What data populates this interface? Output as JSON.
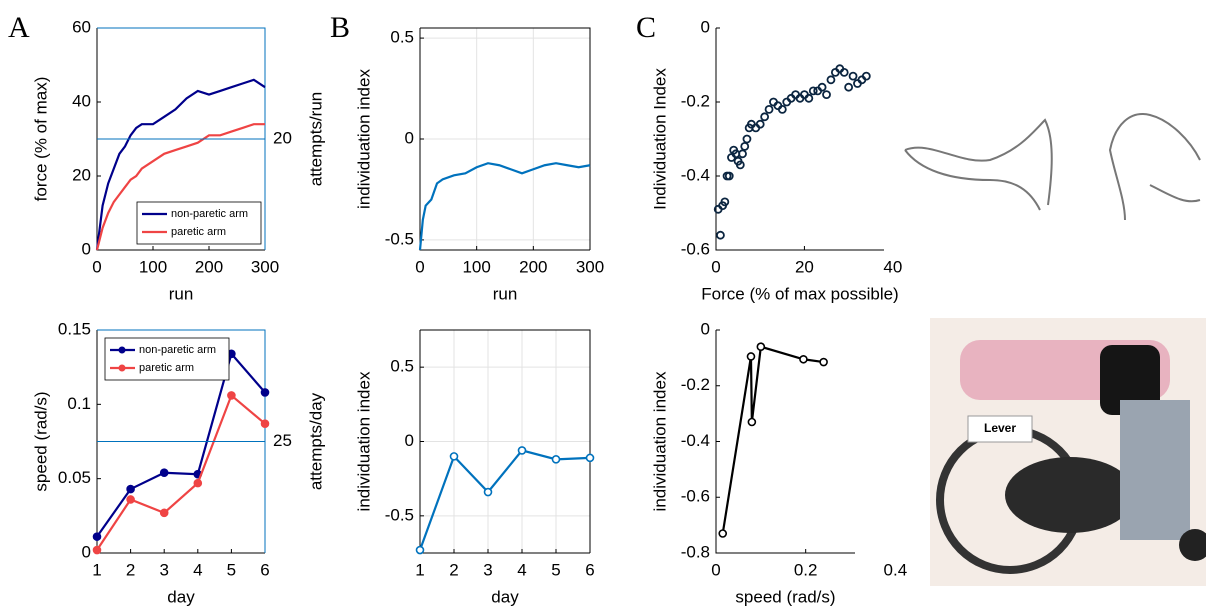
{
  "panel_labels": [
    "A",
    "B",
    "C"
  ],
  "photo_label": "Lever",
  "chart_data": [
    {
      "type": "line",
      "xlabel": "run",
      "ylabel": "force (% of max)",
      "y2label": "attempts/run",
      "x": [
        0,
        10,
        20,
        30,
        40,
        50,
        60,
        70,
        80,
        100,
        120,
        140,
        160,
        180,
        200,
        220,
        240,
        260,
        280,
        300
      ],
      "series": [
        {
          "name": "non-paretic arm",
          "color": "#00008b",
          "values": [
            0,
            12,
            18,
            22,
            26,
            28,
            31,
            33,
            34,
            34,
            36,
            38,
            41,
            43,
            42,
            43,
            44,
            45,
            46,
            44
          ]
        },
        {
          "name": "paretic arm",
          "color": "#ef4444",
          "values": [
            0,
            6,
            10,
            13,
            15,
            17,
            19,
            20,
            22,
            24,
            26,
            27,
            28,
            29,
            31,
            31,
            32,
            33,
            34,
            34
          ]
        },
        {
          "color": "#0072bd",
          "axis": "y2",
          "x": [
            0,
            300
          ],
          "values": [
            20,
            20
          ]
        }
      ],
      "xlim": [
        0,
        300
      ],
      "xticks": [
        0,
        100,
        200,
        300
      ],
      "ylim": [
        0,
        60
      ],
      "yticks": [
        0,
        20,
        40,
        60
      ],
      "y2lim": [
        0,
        40
      ],
      "y2ticks": [
        20
      ],
      "y2color": "#0072bd",
      "legend": "lower right",
      "grid": false
    },
    {
      "type": "line",
      "xlabel": "day",
      "ylabel": "speed (rad/s)",
      "y2label": "attempts/day",
      "marker": true,
      "x": [
        1,
        2,
        3,
        4,
        5,
        6
      ],
      "series": [
        {
          "name": "non-paretic arm",
          "color": "#00008b",
          "values": [
            0.011,
            0.043,
            0.054,
            0.053,
            0.134,
            0.108
          ]
        },
        {
          "name": "paretic arm",
          "color": "#ef4444",
          "values": [
            0.002,
            0.036,
            0.027,
            0.047,
            0.106,
            0.087
          ]
        },
        {
          "color": "#0072bd",
          "axis": "y2",
          "x": [
            1,
            6
          ],
          "values": [
            25,
            25
          ]
        }
      ],
      "xlim": [
        1,
        6
      ],
      "xticks": [
        1,
        2,
        3,
        4,
        5,
        6
      ],
      "ylim": [
        0,
        0.15
      ],
      "yticks": [
        0,
        0.05,
        0.1,
        0.15
      ],
      "y2lim": [
        0,
        50
      ],
      "y2ticks": [
        25
      ],
      "y2color": "#0072bd",
      "legend": "upper left",
      "grid": false
    },
    {
      "type": "line",
      "xlabel": "run",
      "ylabel": "individuation index",
      "x": [
        0,
        5,
        10,
        20,
        30,
        40,
        60,
        80,
        100,
        120,
        140,
        160,
        180,
        200,
        220,
        240,
        260,
        280,
        300
      ],
      "series": [
        {
          "color": "#0072bd",
          "values": [
            -0.55,
            -0.4,
            -0.33,
            -0.3,
            -0.22,
            -0.2,
            -0.18,
            -0.17,
            -0.14,
            -0.12,
            -0.13,
            -0.15,
            -0.17,
            -0.15,
            -0.13,
            -0.12,
            -0.13,
            -0.14,
            -0.13
          ]
        }
      ],
      "xlim": [
        0,
        300
      ],
      "xticks": [
        0,
        100,
        200,
        300
      ],
      "ylim": [
        -0.55,
        0.55
      ],
      "yticks": [
        -0.5,
        0,
        0.5
      ],
      "grid": true
    },
    {
      "type": "line",
      "xlabel": "day",
      "ylabel": "individuation index",
      "marker": true,
      "x": [
        1,
        2,
        3,
        4,
        5,
        6
      ],
      "series": [
        {
          "color": "#0072bd",
          "values": [
            -0.73,
            -0.1,
            -0.34,
            -0.06,
            -0.12,
            -0.11
          ]
        }
      ],
      "xlim": [
        1,
        6
      ],
      "xticks": [
        1,
        2,
        3,
        4,
        5,
        6
      ],
      "ylim": [
        -0.75,
        0.75
      ],
      "yticks": [
        -0.5,
        0,
        0.5
      ],
      "grid": true
    },
    {
      "type": "scatter",
      "xlabel": "Force (% of max possible)",
      "ylabel": "Individuation Index",
      "x": [
        0.5,
        1,
        1.5,
        2,
        2.5,
        3,
        3.5,
        4,
        4.5,
        5,
        5.5,
        6,
        6.5,
        7,
        7.5,
        8,
        9,
        10,
        11,
        12,
        13,
        14,
        15,
        16,
        17,
        18,
        19,
        20,
        21,
        22,
        23,
        24,
        25,
        26,
        27,
        28,
        29,
        30,
        31,
        32,
        33,
        34
      ],
      "series": [
        {
          "color": "#0b2540",
          "values": [
            -0.49,
            -0.56,
            -0.48,
            -0.47,
            -0.4,
            -0.4,
            -0.35,
            -0.33,
            -0.34,
            -0.36,
            -0.37,
            -0.34,
            -0.32,
            -0.3,
            -0.27,
            -0.26,
            -0.27,
            -0.26,
            -0.24,
            -0.22,
            -0.2,
            -0.21,
            -0.22,
            -0.2,
            -0.19,
            -0.18,
            -0.19,
            -0.18,
            -0.19,
            -0.17,
            -0.17,
            -0.16,
            -0.18,
            -0.14,
            -0.12,
            -0.11,
            -0.12,
            -0.16,
            -0.13,
            -0.15,
            -0.14,
            -0.13
          ]
        }
      ],
      "xlim": [
        0,
        38
      ],
      "xticks": [
        0,
        20,
        40
      ],
      "ylim": [
        -0.6,
        0
      ],
      "yticks": [
        -0.6,
        -0.4,
        -0.2,
        0
      ],
      "grid": false
    },
    {
      "type": "line",
      "xlabel": "speed (rad/s)",
      "ylabel": "individuation index",
      "marker": true,
      "x": [
        0.015,
        0.078,
        0.08,
        0.1,
        0.195,
        0.24
      ],
      "series": [
        {
          "color": "#000000",
          "values": [
            -0.73,
            -0.095,
            -0.33,
            -0.06,
            -0.105,
            -0.115
          ]
        }
      ],
      "xlim": [
        0,
        0.31
      ],
      "xticks": [
        0,
        0.2,
        0.4
      ],
      "ylim": [
        -0.8,
        0
      ],
      "yticks": [
        -0.8,
        -0.6,
        -0.4,
        -0.2,
        0
      ],
      "grid": false
    }
  ]
}
